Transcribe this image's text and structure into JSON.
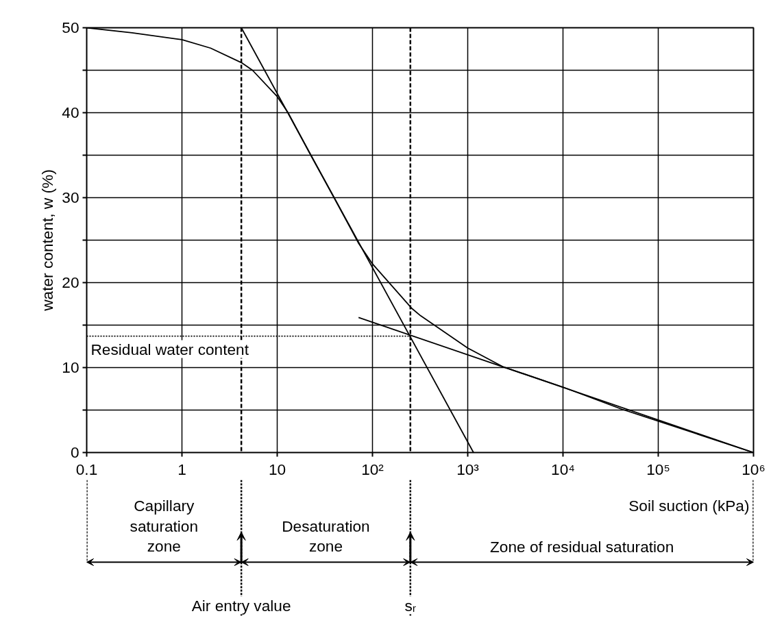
{
  "chart_data": {
    "type": "line",
    "ylabel": "water content, w (%)",
    "xlabel": "Soil suction (kPa)",
    "log": "x",
    "xlim": [
      0.1,
      1000000
    ],
    "xticks": [
      0.1,
      1,
      10,
      {
        "value": 100,
        "label": "10²"
      },
      {
        "value": 1000,
        "label": "10³"
      },
      {
        "value": 10000,
        "label": "10⁴"
      },
      {
        "value": 100000,
        "label": "10⁵"
      },
      {
        "value": 1000000,
        "label": "10⁶"
      }
    ],
    "ylim": [
      0,
      50
    ],
    "yticks": [
      0,
      {
        "value": 5,
        "label": null
      },
      10,
      {
        "value": 15,
        "label": null
      },
      20,
      {
        "value": 25,
        "label": null
      },
      30,
      {
        "value": 35,
        "label": null
      },
      40,
      {
        "value": 45,
        "label": null
      },
      50
    ],
    "grid": true,
    "line_style": "solid",
    "series": [
      {
        "color": "#000000",
        "x": [
          0.1,
          0.3,
          1,
          2,
          4.2,
          5.5,
          10,
          13,
          22.5,
          39.5,
          71.8,
          100,
          257,
          320,
          1000,
          2340,
          10000,
          41400,
          100000,
          1000000
        ],
        "values": [
          50,
          49.4,
          48.6,
          47.6,
          45.9,
          45,
          41.9,
          40,
          35,
          30,
          24.6,
          22.2,
          17,
          16.1,
          12.3,
          10.1,
          7.7,
          5.1,
          3.7,
          0
        ]
      },
      {
        "type": "line",
        "color": "#000000",
        "x": [
          4.2,
          1150
        ],
        "values": [
          50,
          0
        ]
      },
      {
        "type": "line",
        "color": "#000000",
        "x": [
          71.4,
          1000000
        ],
        "values": [
          15.9,
          0
        ]
      },
      {
        "type": "line",
        "color": "#000000",
        "line_style": "dotted",
        "x": [
          0.1,
          250
        ],
        "values": [
          13.7,
          13.7
        ]
      }
    ],
    "ref_lines": [
      {
        "axis": "x",
        "value": 4.2,
        "line_style": "dashed",
        "color": "#000000"
      },
      {
        "axis": "x",
        "value": 250,
        "line_style": "dashed",
        "color": "#000000"
      }
    ],
    "annotations": [
      {
        "text": "Residual water content",
        "x": 0.1,
        "y": 13.7
      },
      "Capillary saturation zone",
      "Desaturation zone",
      "Zone of residual saturation",
      {
        "text": "Air entry value",
        "x": 4.2
      },
      {
        "text": "sᵣ",
        "x": 250
      }
    ]
  }
}
